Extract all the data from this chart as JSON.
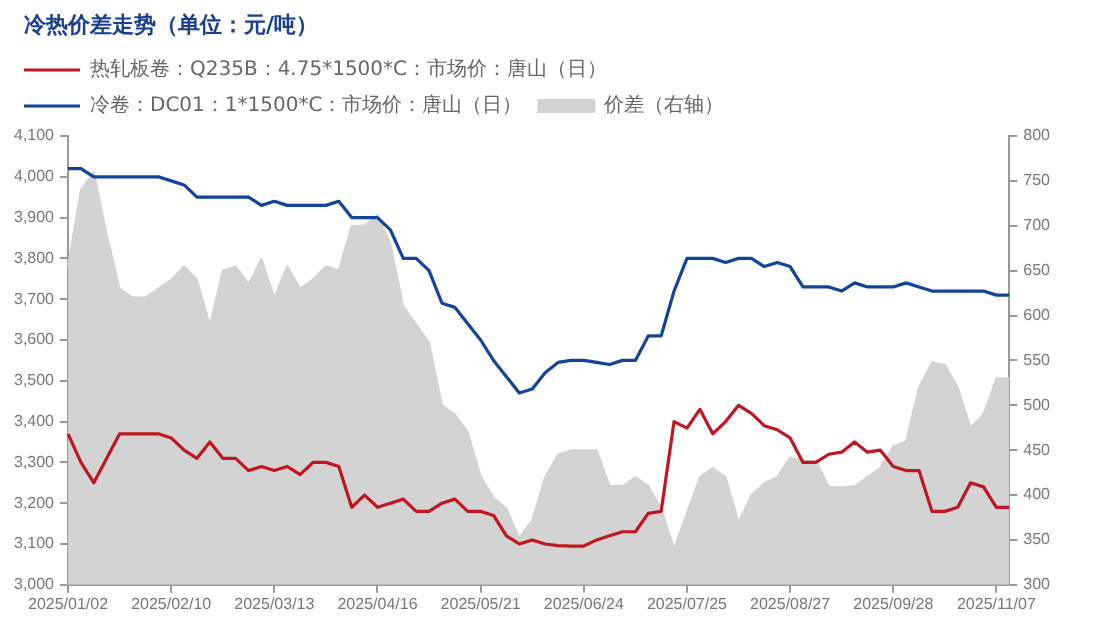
{
  "chart_data": {
    "type": "line",
    "title": "冷热价差走势（单位：元/吨）",
    "categories": [
      "2025/01/02",
      null,
      null,
      null,
      null,
      null,
      null,
      null,
      "2025/02/10",
      null,
      null,
      null,
      null,
      null,
      null,
      null,
      "2025/03/13",
      null,
      null,
      null,
      null,
      null,
      null,
      null,
      "2025/04/16",
      null,
      null,
      null,
      null,
      null,
      null,
      null,
      "2025/05/21",
      null,
      null,
      null,
      null,
      null,
      null,
      null,
      "2025/06/24",
      null,
      null,
      null,
      null,
      null,
      null,
      null,
      "2025/07/25",
      null,
      null,
      null,
      null,
      null,
      null,
      null,
      "2025/08/27",
      null,
      null,
      null,
      null,
      null,
      null,
      null,
      "2025/09/28",
      null,
      null,
      null,
      null,
      null,
      null,
      null,
      "2025/11/07",
      null
    ],
    "series": [
      {
        "name": "热轧板卷：Q235B：4.75*1500*C：市场价：唐山（日）",
        "type": "line",
        "color": "#c0161f",
        "values": [
          3370,
          3300,
          3250,
          3310,
          3370,
          3370,
          3370,
          3370,
          3360,
          3330,
          3310,
          3350,
          3310,
          3310,
          3280,
          3290,
          3280,
          3290,
          3270,
          3300,
          3300,
          3290,
          3190,
          3220,
          3190,
          3200,
          3210,
          3180,
          3180,
          3200,
          3210,
          3180,
          3180,
          3170,
          3120,
          3100,
          3110,
          3100,
          3096,
          3095,
          3095,
          3110,
          3120,
          3130,
          3130,
          3175,
          3180,
          3400,
          3384,
          3430,
          3370,
          3400,
          3440,
          3420,
          3390,
          3380,
          3360,
          3300,
          3300,
          3320,
          3325,
          3350,
          3325,
          3330,
          3290,
          3280,
          3280,
          3180,
          3180,
          3190,
          3250,
          3240,
          3190,
          3190
        ]
      },
      {
        "name": "冷卷：DC01：1*1500*C：市场价：唐山（日）",
        "type": "line",
        "color": "#12449a",
        "values": [
          4020,
          4020,
          4000,
          4000,
          4000,
          4000,
          4000,
          4000,
          3990,
          3980,
          3950,
          3950,
          3950,
          3950,
          3950,
          3930,
          3940,
          3930,
          3930,
          3930,
          3930,
          3940,
          3900,
          3900,
          3900,
          3870,
          3800,
          3800,
          3770,
          3690,
          3680,
          3640,
          3600,
          3550,
          3510,
          3470,
          3480,
          3520,
          3545,
          3550,
          3550,
          3545,
          3540,
          3550,
          3550,
          3610,
          3610,
          3720,
          3800,
          3800,
          3800,
          3790,
          3800,
          3800,
          3780,
          3790,
          3780,
          3730,
          3730,
          3730,
          3720,
          3740,
          3730,
          3730,
          3730,
          3740,
          3730,
          3720,
          3720,
          3720,
          3720,
          3720,
          3710,
          3710
        ]
      },
      {
        "name": "价差（右轴）",
        "type": "area",
        "axis": "y2",
        "color": "#d3d3d3",
        "values": [
          655,
          740,
          760,
          690,
          630,
          620,
          620,
          630,
          640,
          655,
          640,
          589,
          650,
          655,
          635,
          663,
          620,
          655,
          630,
          640,
          655,
          650,
          700,
          700,
          712,
          680,
          610,
          590,
          570,
          500,
          490,
          470,
          421,
          397,
          385,
          352,
          372,
          420,
          445,
          450,
          450,
          450,
          410,
          410,
          420,
          410,
          385,
          340,
          380,
          420,
          430,
          420,
          370,
          400,
          413,
          420,
          442,
          438,
          438,
          409,
          409,
          410,
          420,
          430,
          454,
          460,
          520,
          548,
          545,
          520,
          475,
          490,
          530,
          530
        ]
      }
    ],
    "ylim": [
      3000,
      4100
    ],
    "yticks": [
      {
        "value": 3000,
        "label": "3,000"
      },
      {
        "value": 3100,
        "label": "3,100"
      },
      {
        "value": 3200,
        "label": "3,200"
      },
      {
        "value": 3300,
        "label": "3,300"
      },
      {
        "value": 3400,
        "label": "3,400"
      },
      {
        "value": 3500,
        "label": "3,500"
      },
      {
        "value": 3600,
        "label": "3,600"
      },
      {
        "value": 3700,
        "label": "3,700"
      },
      {
        "value": 3800,
        "label": "3,800"
      },
      {
        "value": 3900,
        "label": "3,900"
      },
      {
        "value": 4000,
        "label": "4,000"
      },
      {
        "value": 4100,
        "label": "4,100"
      }
    ],
    "y2lim": [
      300,
      800
    ],
    "y2ticks": [
      300,
      350,
      400,
      450,
      500,
      550,
      600,
      650,
      700,
      750,
      800
    ],
    "legend": "top left",
    "grid": false,
    "marker": "none",
    "line_style": "solid"
  }
}
